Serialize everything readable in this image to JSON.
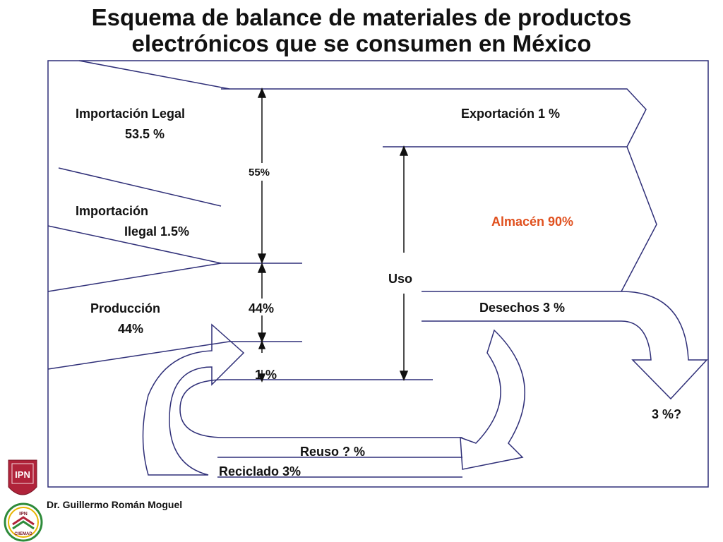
{
  "title": {
    "line1": "Esquema de balance de materiales de productos",
    "line2": "electrónicos que se consumen en México"
  },
  "colors": {
    "line": "#2f2f78",
    "text": "#111111",
    "highlight": "#e0501e",
    "logo_red": "#b0233a",
    "logo_green": "#2e8b3a",
    "logo_yellow": "#e8b400"
  },
  "labels": {
    "importacion_legal_1": "Importación Legal",
    "importacion_legal_2": "53.5 %",
    "importacion_ilegal_1": "Importación",
    "importacion_ilegal_2": "Ilegal 1.5%",
    "produccion_1": "Producción",
    "produccion_2": "44%",
    "pct_55": "55%",
    "pct_44": "44%",
    "pct_1": "1 %",
    "exportacion": "Exportación 1 %",
    "almacen": "Almacén 90%",
    "uso": "Uso",
    "desechos": "Desechos 3 %",
    "final_pct": "3 %?",
    "reuso": "Reuso ? %",
    "reciclado": "Reciclado  3%"
  },
  "logos": {
    "ipn": "IPN",
    "ciiemad_top": "IPN",
    "ciiemad_bottom": "CIIEMAD"
  },
  "author": "Dr. Guillermo Román Moguel"
}
